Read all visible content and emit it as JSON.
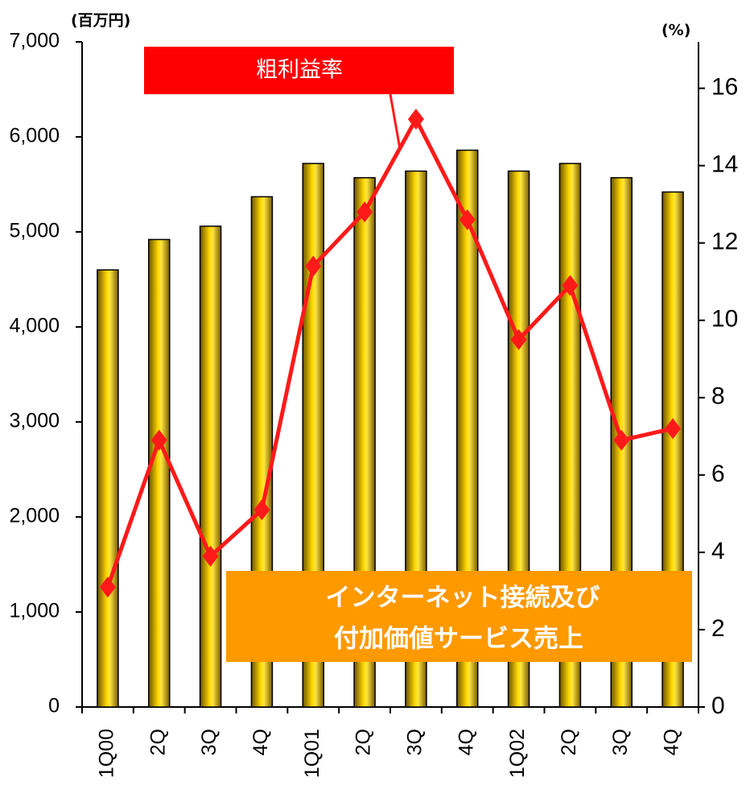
{
  "chart_data": {
    "type": "bar_line",
    "categories": [
      "1Q00",
      "2Q",
      "3Q",
      "4Q",
      "1Q01",
      "2Q",
      "3Q",
      "4Q",
      "1Q02",
      "2Q",
      "3Q",
      "4Q"
    ],
    "series": [
      {
        "name": "インターネット接続及び付加価値サービス売上",
        "name_lines": [
          "インターネット接続及び",
          "付加価値サービス売上"
        ],
        "type": "bar",
        "axis": "y",
        "color": "#f0c000",
        "values": [
          4600,
          4920,
          5060,
          5370,
          5720,
          5570,
          5640,
          5860,
          5640,
          5720,
          5570,
          5420
        ]
      },
      {
        "name": "粗利益率",
        "type": "line",
        "axis": "y2",
        "color": "#ff1a1a",
        "values": [
          3.1,
          6.9,
          3.9,
          5.1,
          11.4,
          12.8,
          15.2,
          12.6,
          9.5,
          10.9,
          6.9,
          7.2
        ]
      }
    ],
    "y_label": "(百万円)",
    "y2_label": "(%)",
    "ylim": [
      0,
      7000
    ],
    "yticks": [
      0,
      {
        "value": 1000,
        "label": "1,000"
      },
      {
        "value": 2000,
        "label": "2,000"
      },
      {
        "value": 3000,
        "label": "3,000"
      },
      {
        "value": 4000,
        "label": "4,000"
      },
      {
        "value": 5000,
        "label": "5,000"
      },
      {
        "value": 6000,
        "label": "6,000"
      },
      {
        "value": 7000,
        "label": "7,000"
      }
    ],
    "y2lim": [
      0,
      17.2
    ],
    "y2ticks": [
      0,
      2,
      4,
      6,
      8,
      10,
      12,
      14,
      16
    ]
  }
}
